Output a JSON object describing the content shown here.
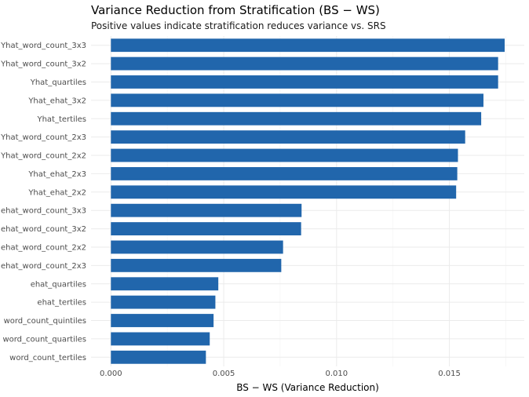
{
  "chart_data": {
    "type": "bar",
    "orientation": "horizontal",
    "title": "Variance Reduction from Stratification (BS − WS)",
    "subtitle": "Positive values indicate stratification reduces variance vs. SRS",
    "xlabel": "BS − WS (Variance Reduction)",
    "ylabel": "",
    "categories": [
      "Yhat_word_count_3x3",
      "Yhat_word_count_3x2",
      "Yhat_quartiles",
      "Yhat_ehat_3x2",
      "Yhat_tertiles",
      "Yhat_word_count_2x3",
      "Yhat_word_count_2x2",
      "Yhat_ehat_2x3",
      "Yhat_ehat_2x2",
      "ehat_word_count_3x3",
      "ehat_word_count_3x2",
      "ehat_word_count_2x2",
      "ehat_word_count_2x3",
      "ehat_quartiles",
      "ehat_tertiles",
      "word_count_quintiles",
      "word_count_quartiles",
      "word_count_tertiles"
    ],
    "values": [
      0.01745,
      0.01716,
      0.01716,
      0.01651,
      0.01641,
      0.0157,
      0.01538,
      0.01535,
      0.0153,
      0.00845,
      0.00843,
      0.00763,
      0.00755,
      0.00476,
      0.00463,
      0.00455,
      0.00438,
      0.00421
    ],
    "xticks": [
      "0.000",
      "0.005",
      "0.010",
      "0.015"
    ],
    "xtick_values": [
      0,
      0.005,
      0.01,
      0.015
    ],
    "xlim": [
      -0.00088,
      0.01832
    ],
    "bar_color": "#2166ac",
    "grid": true
  }
}
